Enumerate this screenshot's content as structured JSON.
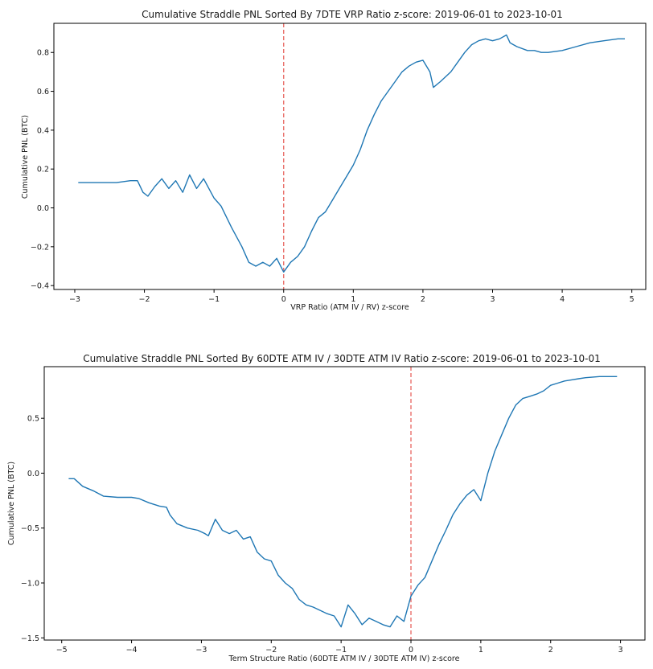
{
  "chart_data": [
    {
      "type": "line",
      "title": "Cumulative Straddle PNL Sorted By 7DTE VRP Ratio z-score: 2019-06-01 to 2023-10-01",
      "xlabel": "VRP Ratio (ATM IV / RV) z-score",
      "ylabel": "Cumulative PNL (BTC)",
      "xlim": [
        -3.3,
        5.2
      ],
      "ylim": [
        -0.42,
        0.95
      ],
      "xticks": [
        -3,
        -2,
        -1,
        0,
        1,
        2,
        3,
        4,
        5
      ],
      "xtick_labels": [
        "−3",
        "−2",
        "−1",
        "0",
        "1",
        "2",
        "3",
        "4",
        "5"
      ],
      "yticks": [
        -0.4,
        -0.2,
        0.0,
        0.2,
        0.4,
        0.6,
        0.8
      ],
      "ytick_labels": [
        "−0.4",
        "−0.2",
        "0.0",
        "0.2",
        "0.4",
        "0.6",
        "0.8"
      ],
      "vline_x": 0,
      "series": [
        {
          "name": "Cumulative PNL",
          "color": "#1f77b4",
          "x": [
            -2.95,
            -2.4,
            -2.2,
            -2.1,
            -2.02,
            -1.95,
            -1.85,
            -1.75,
            -1.65,
            -1.55,
            -1.45,
            -1.35,
            -1.25,
            -1.15,
            -1.0,
            -0.9,
            -0.75,
            -0.6,
            -0.5,
            -0.4,
            -0.3,
            -0.2,
            -0.1,
            0.0,
            0.1,
            0.2,
            0.3,
            0.4,
            0.5,
            0.6,
            0.7,
            0.8,
            0.9,
            1.0,
            1.1,
            1.2,
            1.3,
            1.4,
            1.5,
            1.6,
            1.7,
            1.8,
            1.9,
            2.0,
            2.1,
            2.15,
            2.25,
            2.4,
            2.5,
            2.6,
            2.7,
            2.8,
            2.9,
            3.0,
            3.1,
            3.2,
            3.25,
            3.35,
            3.5,
            3.6,
            3.7,
            3.8,
            4.0,
            4.2,
            4.4,
            4.6,
            4.8,
            4.9
          ],
          "y": [
            0.13,
            0.13,
            0.14,
            0.14,
            0.08,
            0.06,
            0.11,
            0.15,
            0.1,
            0.14,
            0.08,
            0.17,
            0.1,
            0.15,
            0.05,
            0.01,
            -0.1,
            -0.2,
            -0.28,
            -0.3,
            -0.28,
            -0.3,
            -0.26,
            -0.33,
            -0.28,
            -0.25,
            -0.2,
            -0.12,
            -0.05,
            -0.02,
            0.04,
            0.1,
            0.16,
            0.22,
            0.3,
            0.4,
            0.48,
            0.55,
            0.6,
            0.65,
            0.7,
            0.73,
            0.75,
            0.76,
            0.7,
            0.62,
            0.65,
            0.7,
            0.75,
            0.8,
            0.84,
            0.86,
            0.87,
            0.86,
            0.87,
            0.89,
            0.85,
            0.83,
            0.81,
            0.81,
            0.8,
            0.8,
            0.81,
            0.83,
            0.85,
            0.86,
            0.87,
            0.87
          ]
        }
      ]
    },
    {
      "type": "line",
      "title": "Cumulative Straddle PNL Sorted By 60DTE ATM IV / 30DTE ATM IV Ratio z-score: 2019-06-01 to 2023-10-01",
      "xlabel": "Term Structure Ratio (60DTE ATM IV / 30DTE ATM IV) z-score",
      "ylabel": "Cumulative PNL (BTC)",
      "xlim": [
        -5.25,
        3.35
      ],
      "ylim": [
        -1.52,
        0.97
      ],
      "xticks": [
        -5,
        -4,
        -3,
        -2,
        -1,
        0,
        1,
        2,
        3
      ],
      "xtick_labels": [
        "−5",
        "−4",
        "−3",
        "−2",
        "−1",
        "0",
        "1",
        "2",
        "3"
      ],
      "yticks": [
        -1.5,
        -1.0,
        -0.5,
        0.0,
        0.5
      ],
      "ytick_labels": [
        "−1.5",
        "−1.0",
        "−0.5",
        "0.0",
        "0.5"
      ],
      "vline_x": 0,
      "series": [
        {
          "name": "Cumulative PNL",
          "color": "#1f77b4",
          "x": [
            -4.9,
            -4.82,
            -4.7,
            -4.55,
            -4.4,
            -4.2,
            -4.0,
            -3.9,
            -3.75,
            -3.6,
            -3.5,
            -3.45,
            -3.35,
            -3.2,
            -3.05,
            -2.95,
            -2.9,
            -2.8,
            -2.7,
            -2.6,
            -2.5,
            -2.4,
            -2.3,
            -2.2,
            -2.1,
            -2.0,
            -1.9,
            -1.8,
            -1.7,
            -1.6,
            -1.5,
            -1.4,
            -1.3,
            -1.2,
            -1.1,
            -1.0,
            -0.9,
            -0.8,
            -0.7,
            -0.6,
            -0.5,
            -0.4,
            -0.3,
            -0.2,
            -0.1,
            0.0,
            0.1,
            0.2,
            0.3,
            0.4,
            0.5,
            0.6,
            0.7,
            0.8,
            0.9,
            1.0,
            1.1,
            1.2,
            1.3,
            1.4,
            1.5,
            1.6,
            1.7,
            1.8,
            1.9,
            2.0,
            2.1,
            2.2,
            2.3,
            2.4,
            2.5,
            2.7,
            2.95
          ],
          "y": [
            -0.05,
            -0.05,
            -0.12,
            -0.16,
            -0.21,
            -0.22,
            -0.22,
            -0.23,
            -0.27,
            -0.3,
            -0.31,
            -0.38,
            -0.46,
            -0.5,
            -0.52,
            -0.55,
            -0.57,
            -0.42,
            -0.52,
            -0.55,
            -0.52,
            -0.6,
            -0.58,
            -0.72,
            -0.78,
            -0.8,
            -0.93,
            -1.0,
            -1.05,
            -1.15,
            -1.2,
            -1.22,
            -1.25,
            -1.28,
            -1.3,
            -1.4,
            -1.2,
            -1.28,
            -1.38,
            -1.32,
            -1.35,
            -1.38,
            -1.4,
            -1.3,
            -1.35,
            -1.12,
            -1.02,
            -0.95,
            -0.8,
            -0.65,
            -0.52,
            -0.38,
            -0.28,
            -0.2,
            -0.15,
            -0.25,
            0.0,
            0.2,
            0.35,
            0.5,
            0.62,
            0.68,
            0.7,
            0.72,
            0.75,
            0.8,
            0.82,
            0.84,
            0.85,
            0.86,
            0.87,
            0.88,
            0.88
          ]
        }
      ]
    }
  ]
}
